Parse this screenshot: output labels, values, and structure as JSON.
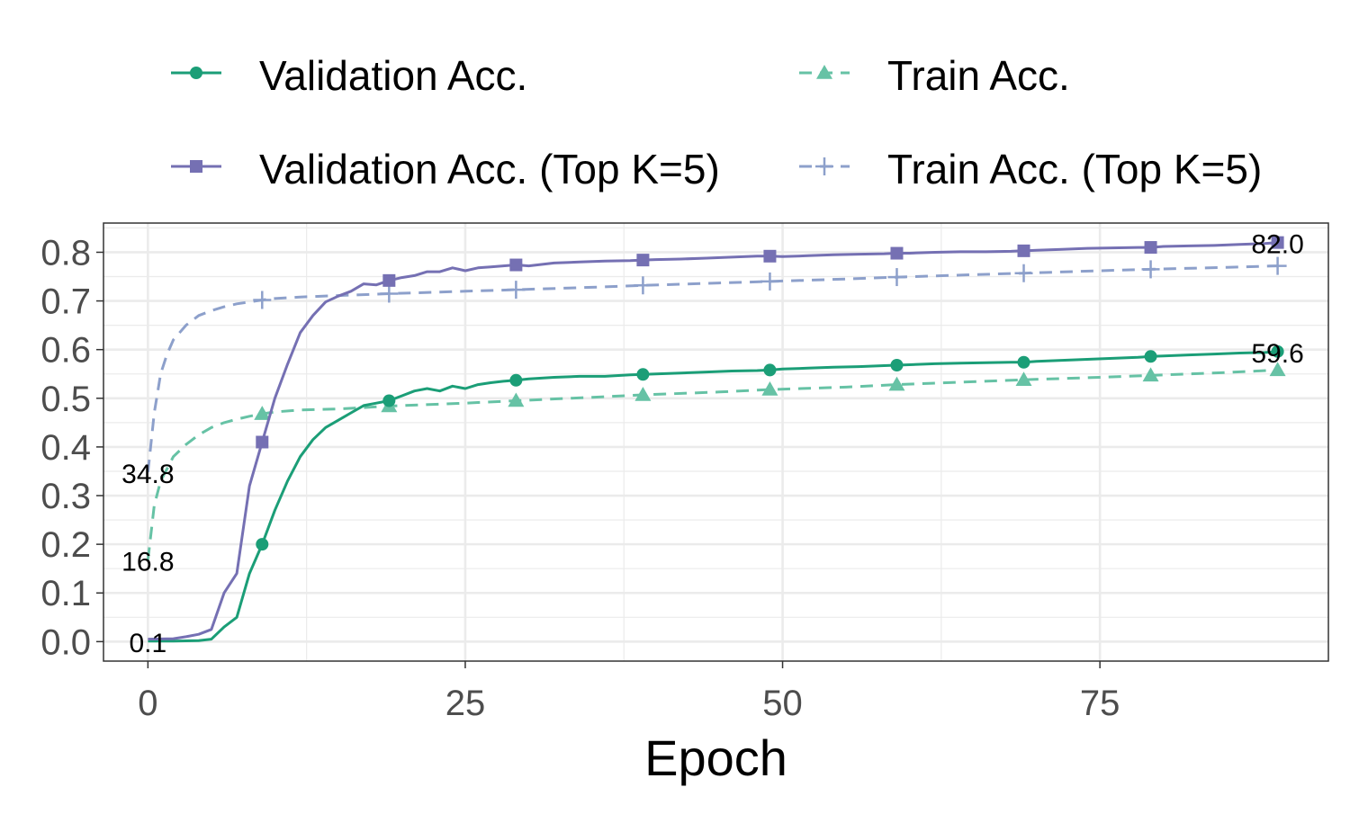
{
  "chart_data": {
    "type": "line",
    "xlabel": "Epoch",
    "ylabel": "",
    "xlim": [
      -3.5,
      93
    ],
    "ylim": [
      -0.04,
      0.86
    ],
    "x_ticks": [
      0,
      25,
      50,
      75
    ],
    "x_tick_labels": [
      "0",
      "25",
      "50",
      "75"
    ],
    "y_ticks": [
      0.0,
      0.1,
      0.2,
      0.3,
      0.4,
      0.5,
      0.6,
      0.7,
      0.8
    ],
    "y_tick_labels": [
      "0.0",
      "0.1",
      "0.2",
      "0.3",
      "0.4",
      "0.5",
      "0.6",
      "0.7",
      "0.8"
    ],
    "grid": true,
    "legend_position": "top",
    "series": [
      {
        "name": "Validation Acc.",
        "color": "#1b9e77",
        "dash": "solid",
        "marker": "circle",
        "x": [
          0,
          2,
          4,
          5,
          6,
          7,
          8,
          9,
          10,
          11,
          12,
          13,
          14,
          15,
          16,
          17,
          18,
          19,
          20,
          21,
          22,
          23,
          24,
          25,
          26,
          27,
          28,
          29,
          30,
          32,
          34,
          36,
          38,
          39,
          40,
          42,
          44,
          46,
          48,
          49,
          50,
          52,
          54,
          56,
          58,
          59,
          60,
          62,
          64,
          66,
          68,
          69,
          70,
          72,
          74,
          76,
          78,
          79,
          80,
          82,
          84,
          86,
          88,
          89
        ],
        "y": [
          0.001,
          0.001,
          0.002,
          0.005,
          0.03,
          0.05,
          0.14,
          0.2,
          0.27,
          0.33,
          0.38,
          0.415,
          0.44,
          0.455,
          0.47,
          0.485,
          0.49,
          0.495,
          0.505,
          0.515,
          0.52,
          0.515,
          0.525,
          0.52,
          0.528,
          0.532,
          0.535,
          0.537,
          0.54,
          0.543,
          0.545,
          0.545,
          0.548,
          0.549,
          0.55,
          0.552,
          0.554,
          0.556,
          0.557,
          0.558,
          0.56,
          0.562,
          0.564,
          0.565,
          0.567,
          0.568,
          0.569,
          0.571,
          0.572,
          0.573,
          0.574,
          0.574,
          0.576,
          0.578,
          0.58,
          0.582,
          0.584,
          0.586,
          0.587,
          0.589,
          0.591,
          0.593,
          0.594,
          0.596
        ],
        "marker_x": [
          9,
          19,
          29,
          39,
          49,
          59,
          69,
          79,
          89
        ]
      },
      {
        "name": "Train Acc.",
        "color": "#66c2a5",
        "dash": "dashed",
        "marker": "triangle",
        "x": [
          0,
          0.5,
          1,
          2,
          3,
          4,
          5,
          6,
          7,
          8,
          9,
          10,
          12,
          15,
          19,
          25,
          29,
          35,
          39,
          45,
          49,
          55,
          59,
          65,
          69,
          75,
          79,
          85,
          89
        ],
        "y": [
          0.168,
          0.28,
          0.33,
          0.38,
          0.405,
          0.425,
          0.44,
          0.45,
          0.457,
          0.463,
          0.468,
          0.472,
          0.476,
          0.478,
          0.484,
          0.49,
          0.495,
          0.502,
          0.507,
          0.513,
          0.518,
          0.523,
          0.528,
          0.534,
          0.538,
          0.543,
          0.547,
          0.553,
          0.558
        ],
        "marker_x": [
          9,
          19,
          29,
          39,
          49,
          59,
          69,
          79,
          89
        ]
      },
      {
        "name": "Validation Acc. (Top K=5)",
        "color": "#7570b3",
        "dash": "solid",
        "marker": "square",
        "x": [
          0,
          2,
          3,
          4,
          5,
          6,
          7,
          8,
          9,
          10,
          11,
          12,
          13,
          14,
          15,
          16,
          17,
          18,
          19,
          20,
          21,
          22,
          23,
          24,
          25,
          26,
          27,
          28,
          29,
          30,
          32,
          34,
          36,
          38,
          39,
          40,
          42,
          44,
          46,
          48,
          49,
          50,
          52,
          54,
          56,
          58,
          59,
          60,
          62,
          64,
          66,
          68,
          69,
          70,
          72,
          74,
          76,
          78,
          79,
          80,
          82,
          84,
          86,
          88,
          89
        ],
        "y": [
          0.005,
          0.006,
          0.01,
          0.015,
          0.025,
          0.1,
          0.14,
          0.32,
          0.41,
          0.5,
          0.57,
          0.635,
          0.67,
          0.698,
          0.71,
          0.72,
          0.735,
          0.733,
          0.742,
          0.748,
          0.752,
          0.76,
          0.76,
          0.768,
          0.762,
          0.768,
          0.77,
          0.772,
          0.774,
          0.772,
          0.778,
          0.78,
          0.782,
          0.783,
          0.784,
          0.785,
          0.786,
          0.788,
          0.79,
          0.792,
          0.792,
          0.791,
          0.793,
          0.795,
          0.796,
          0.797,
          0.798,
          0.798,
          0.8,
          0.801,
          0.801,
          0.802,
          0.803,
          0.804,
          0.806,
          0.808,
          0.809,
          0.81,
          0.81,
          0.812,
          0.813,
          0.814,
          0.816,
          0.818,
          0.82
        ],
        "marker_x": [
          9,
          19,
          29,
          39,
          49,
          59,
          69,
          79,
          89
        ]
      },
      {
        "name": "Train Acc. (Top K=5)",
        "color": "#8da0cb",
        "dash": "dashed",
        "marker": "plus",
        "x": [
          0,
          0.5,
          1,
          1.5,
          2,
          3,
          4,
          5,
          6,
          7,
          8,
          9,
          10,
          12,
          15,
          19,
          25,
          29,
          35,
          39,
          45,
          49,
          55,
          59,
          65,
          69,
          75,
          79,
          85,
          89
        ],
        "y": [
          0.348,
          0.47,
          0.55,
          0.59,
          0.62,
          0.65,
          0.67,
          0.68,
          0.688,
          0.694,
          0.698,
          0.702,
          0.705,
          0.708,
          0.711,
          0.715,
          0.72,
          0.723,
          0.728,
          0.732,
          0.737,
          0.74,
          0.745,
          0.749,
          0.754,
          0.757,
          0.762,
          0.765,
          0.769,
          0.772
        ],
        "marker_x": [
          9,
          19,
          29,
          39,
          49,
          59,
          69,
          79,
          89
        ]
      }
    ],
    "annotations": [
      {
        "text": "34.8",
        "x": 0,
        "y": 0.348
      },
      {
        "text": "16.8",
        "x": 0,
        "y": 0.168
      },
      {
        "text": "0.1",
        "x": 0,
        "y": 0.001
      },
      {
        "text": "82.0",
        "x": 89,
        "y": 0.82
      },
      {
        "text": "59.6",
        "x": 89,
        "y": 0.596
      }
    ]
  }
}
